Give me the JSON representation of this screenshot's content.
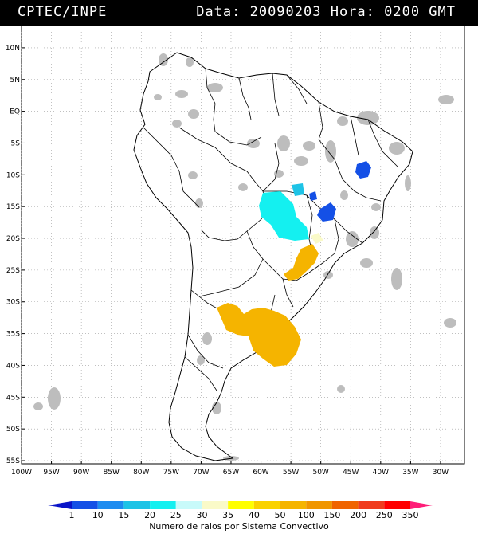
{
  "header": {
    "source": "CPTEC/INPE",
    "datetime": "Data: 20090203 Hora: 0200 GMT"
  },
  "map": {
    "lat_labels": [
      "10N",
      "5N",
      "EQ",
      "5S",
      "10S",
      "15S",
      "20S",
      "25S",
      "30S",
      "35S",
      "40S",
      "45S",
      "50S",
      "55S"
    ],
    "lon_labels": [
      "100W",
      "95W",
      "90W",
      "85W",
      "80W",
      "75W",
      "70W",
      "65W",
      "60W",
      "55W",
      "50W",
      "45W",
      "40W",
      "35W",
      "30W"
    ]
  },
  "legend": {
    "caption": "Numero de raios por Sistema Convectivo",
    "values": [
      "1",
      "10",
      "15",
      "20",
      "25",
      "30",
      "35",
      "40",
      "50",
      "100",
      "150",
      "200",
      "250",
      "350"
    ],
    "colors": [
      "#0a14c8",
      "#1450e6",
      "#1e8cf0",
      "#1ec3e6",
      "#14f0f0",
      "#c8fafa",
      "#fafac8",
      "#ffff00",
      "#fad200",
      "#f5b400",
      "#f09600",
      "#f06400",
      "#f03c1e",
      "#ff0000",
      "#ff1e78"
    ]
  }
}
